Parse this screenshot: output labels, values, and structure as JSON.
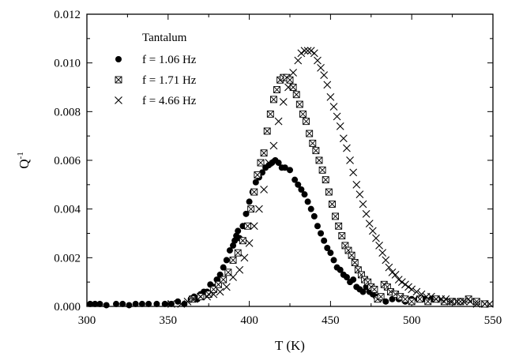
{
  "chart_data": {
    "type": "scatter",
    "title": "",
    "xlabel": "T (K)",
    "ylabel": {
      "base": "Q",
      "sup": "-1"
    },
    "xlim": [
      300,
      550
    ],
    "ylim": [
      0,
      0.012
    ],
    "xticks": [
      "300",
      "350",
      "400",
      "450",
      "500",
      "550"
    ],
    "yticks": [
      "0.000",
      "0.002",
      "0.004",
      "0.006",
      "0.008",
      "0.010",
      "0.012"
    ],
    "grid": false,
    "legend": {
      "placement": "top-left",
      "title": "Tantalum"
    },
    "series": [
      {
        "name": "f = 1.06 Hz",
        "marker": "filled-circle",
        "x": [
          302,
          305,
          308,
          312,
          318,
          322,
          326,
          330,
          334,
          338,
          343,
          348,
          352,
          356,
          360,
          364,
          366,
          368,
          370,
          372,
          374,
          376,
          378,
          380,
          382,
          384,
          386,
          388,
          390,
          391,
          392,
          393,
          394,
          396,
          398,
          400,
          402,
          404,
          406,
          408,
          410,
          412,
          414,
          416,
          418,
          420,
          422,
          425,
          428,
          430,
          432,
          434,
          436,
          438,
          440,
          442,
          444,
          446,
          448,
          450,
          452,
          454,
          456,
          458,
          460,
          462,
          464,
          466,
          468,
          470,
          472,
          474,
          476,
          478,
          480,
          484,
          488,
          492,
          496,
          500,
          504,
          508,
          512,
          516,
          520
        ],
        "y": [
          0.0001,
          0.0001,
          0.0001,
          5e-05,
          0.0001,
          0.0001,
          5e-05,
          0.0001,
          0.0001,
          0.0001,
          0.0001,
          0.0001,
          0.0001,
          0.0002,
          0.0001,
          0.0003,
          0.0004,
          0.0003,
          0.0005,
          0.0006,
          0.0006,
          0.0009,
          0.0008,
          0.0011,
          0.0013,
          0.0016,
          0.0019,
          0.0023,
          0.0025,
          0.0027,
          0.0029,
          0.0031,
          0.0028,
          0.0033,
          0.0038,
          0.0043,
          0.0047,
          0.0051,
          0.0053,
          0.0055,
          0.0057,
          0.0058,
          0.0059,
          0.006,
          0.0059,
          0.0057,
          0.0057,
          0.0056,
          0.0052,
          0.005,
          0.0048,
          0.0046,
          0.0043,
          0.004,
          0.0037,
          0.0033,
          0.003,
          0.0027,
          0.0024,
          0.0022,
          0.0019,
          0.0016,
          0.0015,
          0.0013,
          0.0012,
          0.001,
          0.0011,
          0.0008,
          0.0007,
          0.0006,
          0.0008,
          0.0006,
          0.0005,
          0.0004,
          0.0003,
          0.0002,
          0.0003,
          0.0003,
          0.0002,
          0.0003,
          0.0003,
          0.0003,
          0.0003,
          0.0003,
          0.0002
        ]
      },
      {
        "name": "f = 1.71 Hz",
        "marker": "square-x",
        "x": [
          365,
          370,
          375,
          378,
          381,
          384,
          387,
          390,
          393,
          396,
          399,
          401,
          403,
          405,
          407,
          409,
          411,
          413,
          415,
          417,
          419,
          421,
          423,
          425,
          427,
          429,
          431,
          433,
          435,
          437,
          439,
          441,
          443,
          445,
          447,
          449,
          451,
          453,
          455,
          457,
          459,
          461,
          463,
          465,
          467,
          469,
          471,
          473,
          475,
          477,
          479,
          481,
          483,
          485,
          487,
          490,
          493,
          496,
          500,
          505,
          510,
          515,
          520,
          525,
          530,
          535,
          540,
          545
        ],
        "y": [
          0.0003,
          0.0004,
          0.0005,
          0.0007,
          0.0009,
          0.0011,
          0.0014,
          0.0019,
          0.0022,
          0.0027,
          0.0033,
          0.004,
          0.0047,
          0.0054,
          0.0059,
          0.0063,
          0.0072,
          0.0079,
          0.0085,
          0.0089,
          0.0093,
          0.0094,
          0.0094,
          0.0093,
          0.009,
          0.0087,
          0.0083,
          0.0079,
          0.0076,
          0.0071,
          0.0067,
          0.0064,
          0.006,
          0.0056,
          0.0052,
          0.0047,
          0.0042,
          0.0037,
          0.0033,
          0.0029,
          0.0025,
          0.0023,
          0.0021,
          0.0018,
          0.0015,
          0.0013,
          0.0011,
          0.001,
          0.0008,
          0.0007,
          0.0003,
          0.0004,
          0.0009,
          0.0008,
          0.0006,
          0.0005,
          0.0004,
          0.0003,
          0.0002,
          0.0003,
          0.0002,
          0.0003,
          0.0002,
          0.0002,
          0.0002,
          0.0003,
          0.0002,
          0.0001
        ]
      },
      {
        "name": "f = 4.66 Hz",
        "marker": "x",
        "x": [
          352,
          358,
          362,
          366,
          370,
          374,
          378,
          382,
          386,
          390,
          394,
          397,
          400,
          403,
          406,
          409,
          412,
          415,
          418,
          421,
          424,
          427,
          430,
          432,
          434,
          436,
          438,
          440,
          442,
          444,
          446,
          448,
          450,
          452,
          454,
          456,
          458,
          460,
          462,
          464,
          466,
          468,
          470,
          472,
          474,
          476,
          478,
          480,
          482,
          484,
          486,
          488,
          490,
          492,
          494,
          496,
          498,
          500,
          503,
          506,
          509,
          512,
          515,
          518,
          521,
          524,
          528,
          532,
          536,
          540,
          545,
          548
        ],
        "y": [
          0.0001,
          0.0001,
          0.0002,
          0.0003,
          0.0004,
          0.0004,
          0.0005,
          0.0006,
          0.0008,
          0.0012,
          0.0015,
          0.002,
          0.0026,
          0.0033,
          0.004,
          0.0048,
          0.0059,
          0.0066,
          0.0076,
          0.0084,
          0.009,
          0.0096,
          0.0101,
          0.0104,
          0.0105,
          0.0105,
          0.0105,
          0.0104,
          0.0101,
          0.0098,
          0.0095,
          0.0091,
          0.0086,
          0.0082,
          0.0078,
          0.0074,
          0.0069,
          0.0065,
          0.006,
          0.0055,
          0.005,
          0.0046,
          0.0042,
          0.0038,
          0.0034,
          0.0031,
          0.0028,
          0.0025,
          0.0022,
          0.0019,
          0.0016,
          0.0014,
          0.0013,
          0.0011,
          0.001,
          0.0009,
          0.0008,
          0.0007,
          0.0006,
          0.0005,
          0.0004,
          0.0004,
          0.0003,
          0.0003,
          0.0003,
          0.0002,
          0.0002,
          0.0002,
          0.0002,
          0.0001,
          0.0001,
          0.0001
        ]
      }
    ]
  }
}
